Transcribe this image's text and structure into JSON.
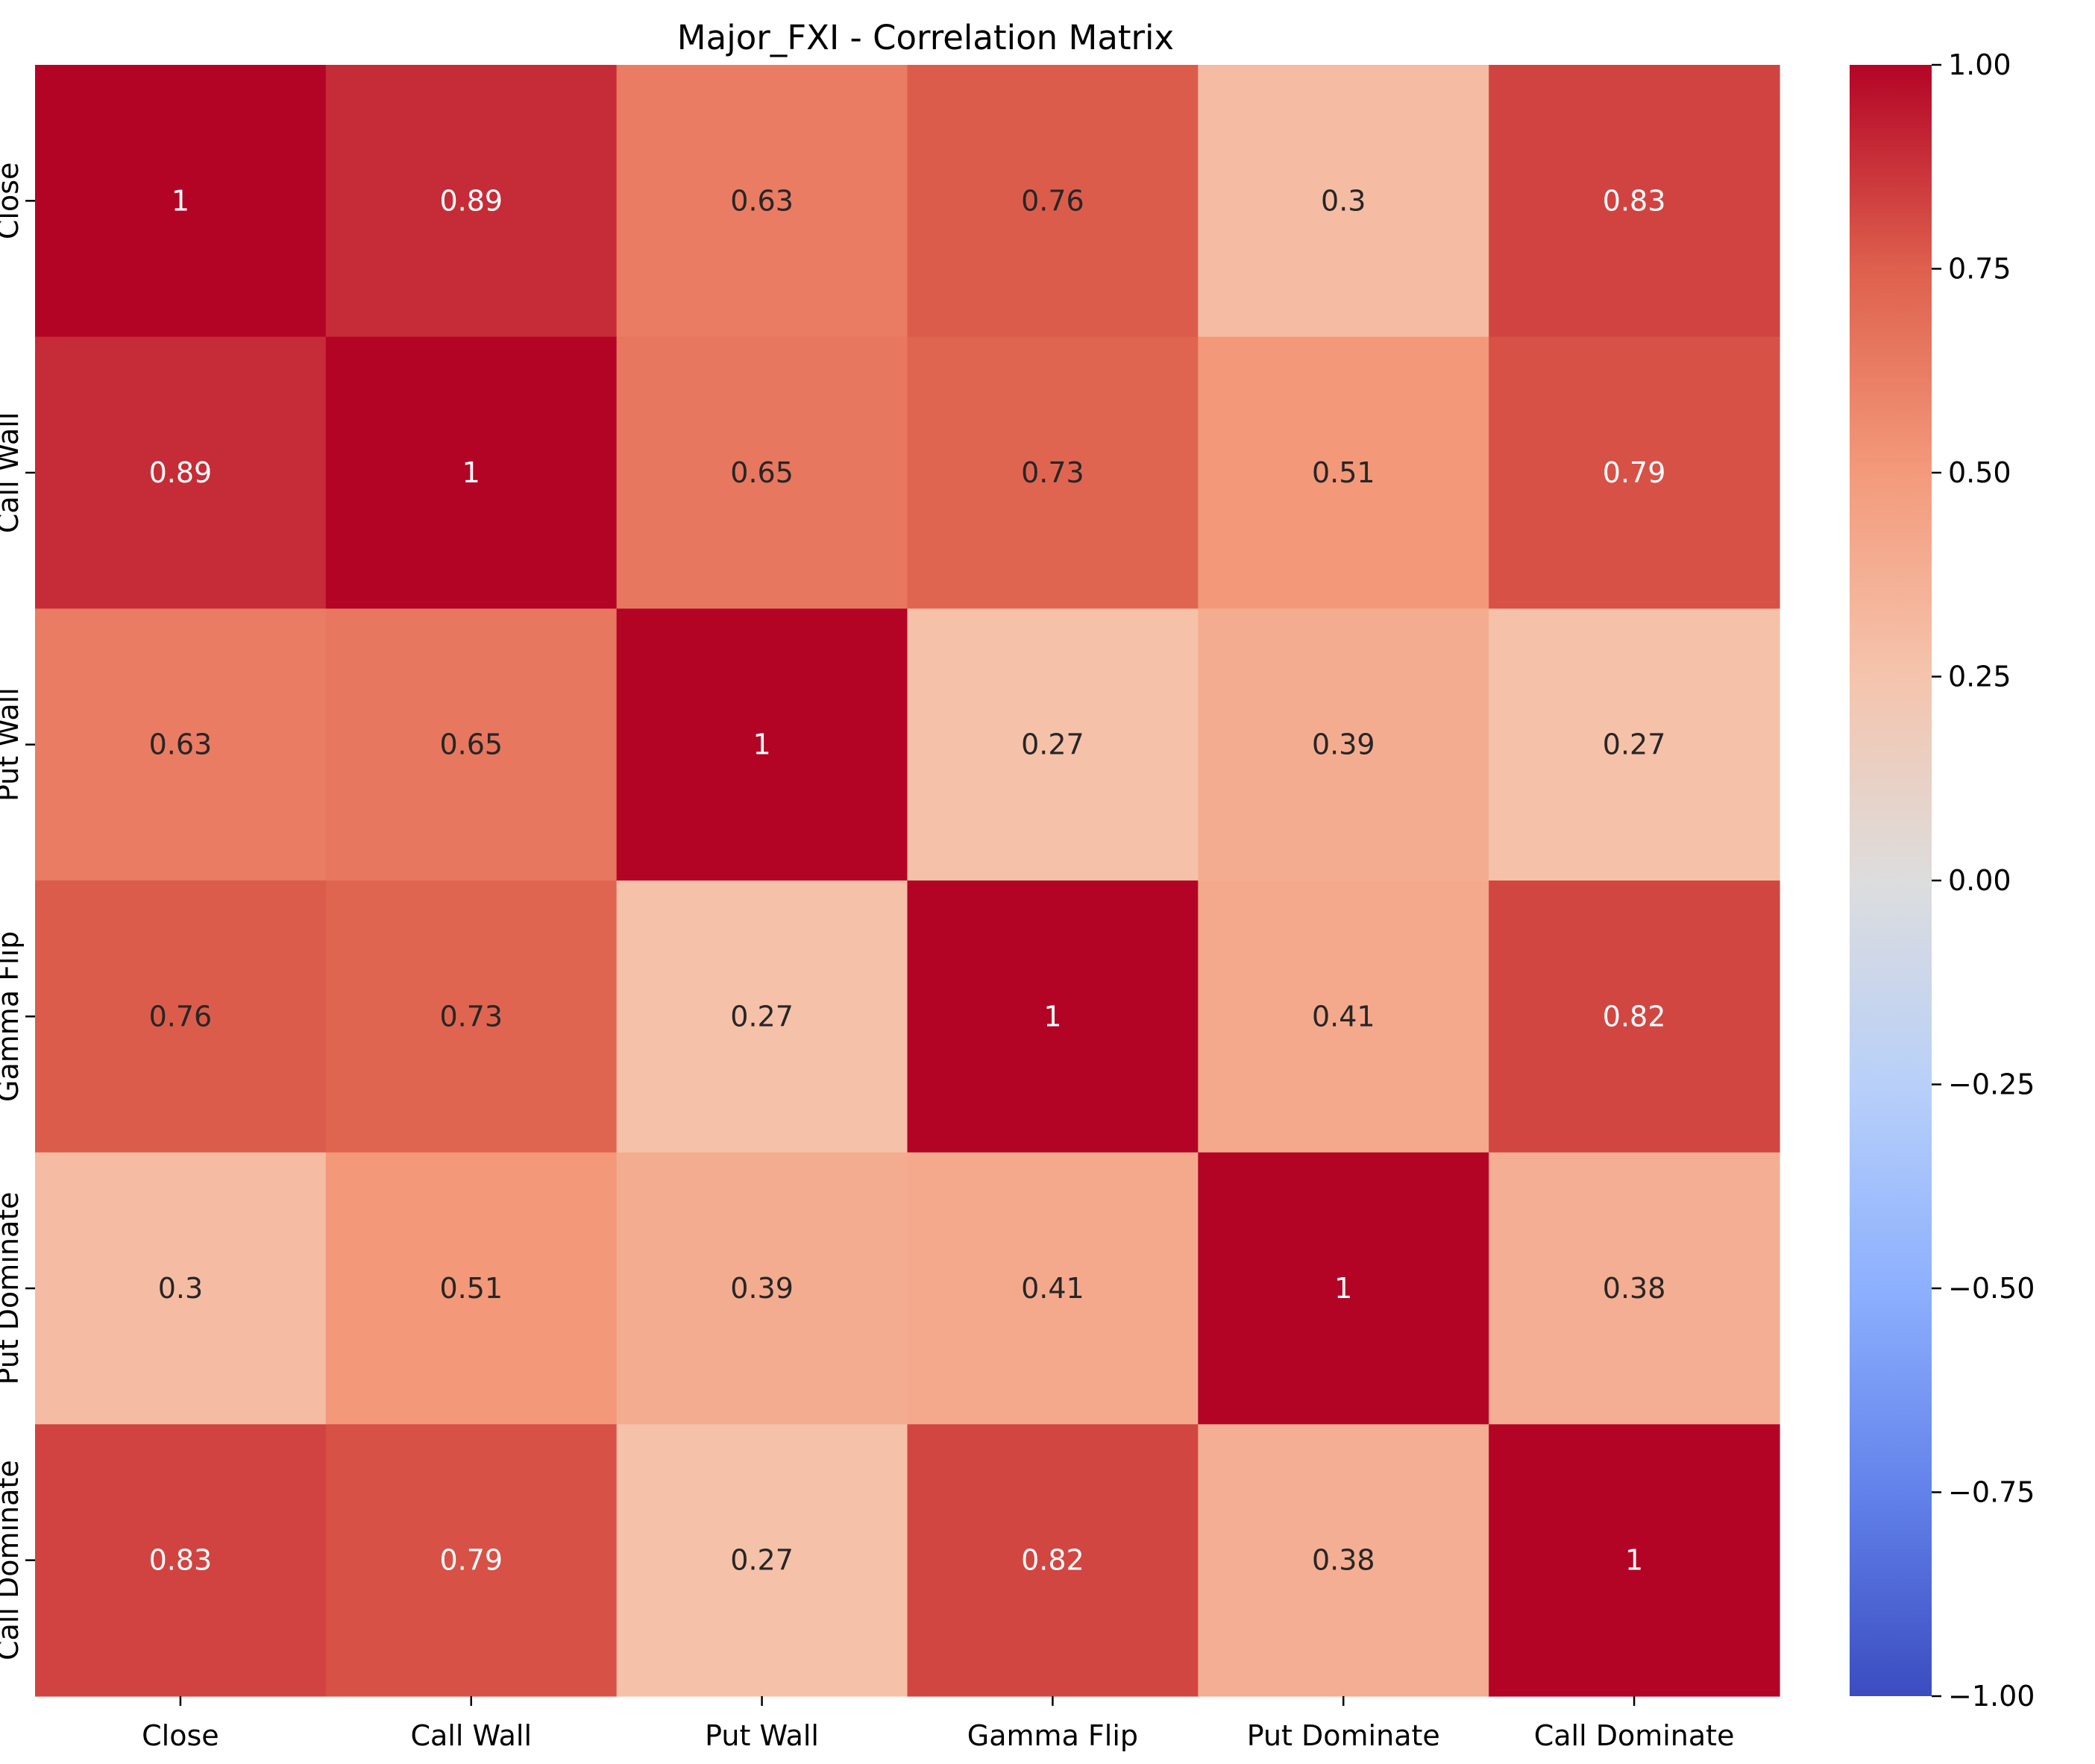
{
  "chart_data": {
    "type": "heatmap",
    "title": "Major_FXI - Correlation Matrix",
    "xlabel": "",
    "ylabel": "",
    "x_categories": [
      "Close",
      "Call Wall",
      "Put Wall",
      "Gamma Flip",
      "Put Dominate",
      "Call Dominate"
    ],
    "y_categories": [
      "Close",
      "Call Wall",
      "Put Wall",
      "Gamma Flip",
      "Put Dominate",
      "Call Dominate"
    ],
    "values": [
      [
        1,
        0.89,
        0.63,
        0.76,
        0.3,
        0.83
      ],
      [
        0.89,
        1,
        0.65,
        0.73,
        0.51,
        0.79
      ],
      [
        0.63,
        0.65,
        1,
        0.27,
        0.39,
        0.27
      ],
      [
        0.76,
        0.73,
        0.27,
        1,
        0.41,
        0.82
      ],
      [
        0.3,
        0.51,
        0.39,
        0.41,
        1,
        0.38
      ],
      [
        0.83,
        0.79,
        0.27,
        0.82,
        0.38,
        1
      ]
    ],
    "annotations": [
      [
        "1",
        "0.89",
        "0.63",
        "0.76",
        "0.3",
        "0.83"
      ],
      [
        "0.89",
        "1",
        "0.65",
        "0.73",
        "0.51",
        "0.79"
      ],
      [
        "0.63",
        "0.65",
        "1",
        "0.27",
        "0.39",
        "0.27"
      ],
      [
        "0.76",
        "0.73",
        "0.27",
        "1",
        "0.41",
        "0.82"
      ],
      [
        "0.3",
        "0.51",
        "0.39",
        "0.41",
        "1",
        "0.38"
      ],
      [
        "0.83",
        "0.79",
        "0.27",
        "0.82",
        "0.38",
        "1"
      ]
    ],
    "colormap": "coolwarm",
    "vmin": -1,
    "vmax": 1,
    "colorbar_ticks": [
      1.0,
      0.75,
      0.5,
      0.25,
      0.0,
      -0.25,
      -0.5,
      -0.75,
      -1.0
    ],
    "colorbar_tick_labels": [
      "1.00",
      "0.75",
      "0.50",
      "0.25",
      "0.00",
      "−0.25",
      "−0.50",
      "−0.75",
      "−1.00"
    ],
    "colors": {
      "low": "#3b4cc0",
      "mid": "#dddddd",
      "high": "#b40426",
      "dark_text": "#262626",
      "light_text": "#ffffff"
    }
  }
}
